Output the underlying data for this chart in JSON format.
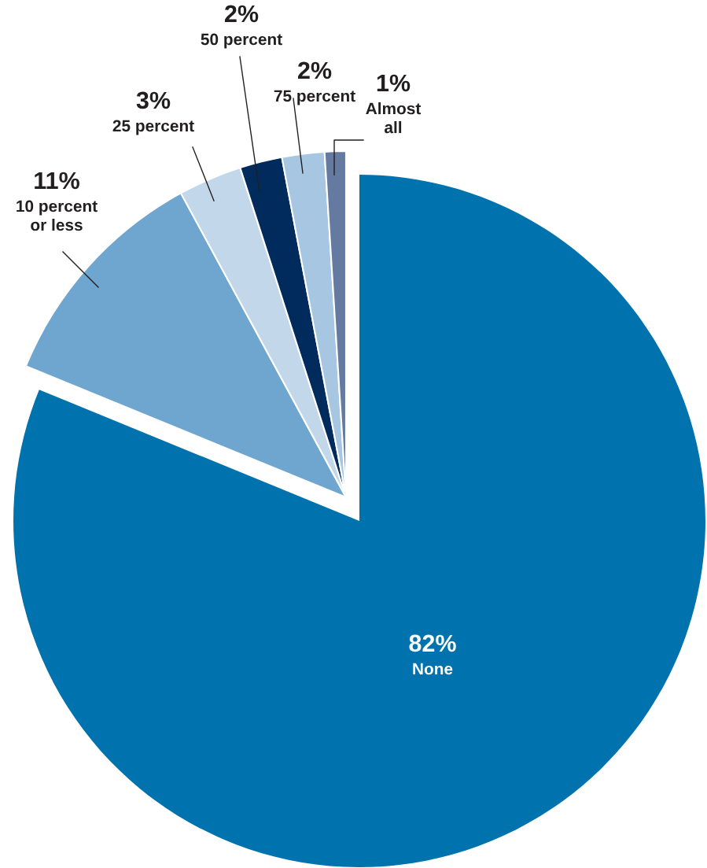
{
  "chart_data": {
    "type": "pie",
    "categories": [
      "None",
      "10 percent\nor less",
      "25 percent",
      "50 percent",
      "75 percent",
      "Almost\nall"
    ],
    "values": [
      82,
      11,
      3,
      2,
      2,
      1
    ],
    "value_labels": [
      "82%",
      "11%",
      "3%",
      "2%",
      "2%",
      "1%"
    ],
    "colors": [
      "#0072ae",
      "#6fa6cf",
      "#c2d7ea",
      "#002b5c",
      "#a6c6e2",
      "#647aa0"
    ]
  }
}
